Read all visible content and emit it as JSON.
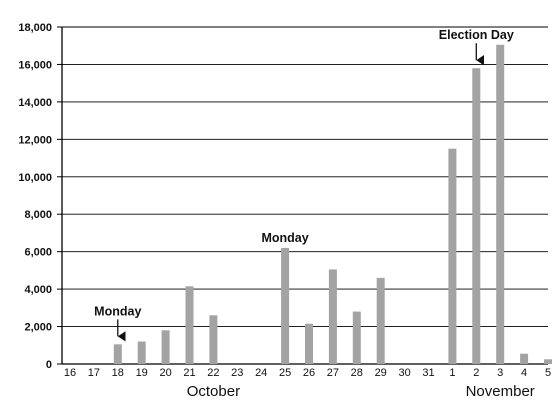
{
  "chart_data": {
    "type": "bar",
    "categories": [
      "16",
      "17",
      "18",
      "19",
      "20",
      "21",
      "22",
      "23",
      "24",
      "25",
      "26",
      "27",
      "28",
      "29",
      "30",
      "31",
      "1",
      "2",
      "3",
      "4",
      "5"
    ],
    "values": [
      0,
      0,
      1050,
      1200,
      1800,
      4150,
      2600,
      0,
      0,
      6200,
      2150,
      5050,
      2800,
      4600,
      0,
      0,
      11500,
      15800,
      17050,
      550,
      250
    ],
    "ylim": [
      0,
      18000
    ],
    "yticks": [
      0,
      2000,
      4000,
      6000,
      8000,
      10000,
      12000,
      14000,
      16000,
      18000
    ],
    "ytick_labels": [
      "0",
      "2,000",
      "4,000",
      "6,000",
      "8,000",
      "10,000",
      "12,000",
      "14,000",
      "16,000",
      "18,000"
    ],
    "month_labels": [
      {
        "text": "October",
        "category": "22"
      },
      {
        "text": "November",
        "category": "3"
      }
    ],
    "annotations": [
      {
        "text": "Monday",
        "category": "18",
        "arrow": true
      },
      {
        "text": "Monday",
        "category": "25",
        "arrow": false
      },
      {
        "text": "Election Day",
        "category": "2",
        "arrow": true
      }
    ],
    "grid": true,
    "legend": "none",
    "colors": {
      "bar": "#a3a3a3",
      "grid": "#000000",
      "text": "#111111"
    }
  }
}
